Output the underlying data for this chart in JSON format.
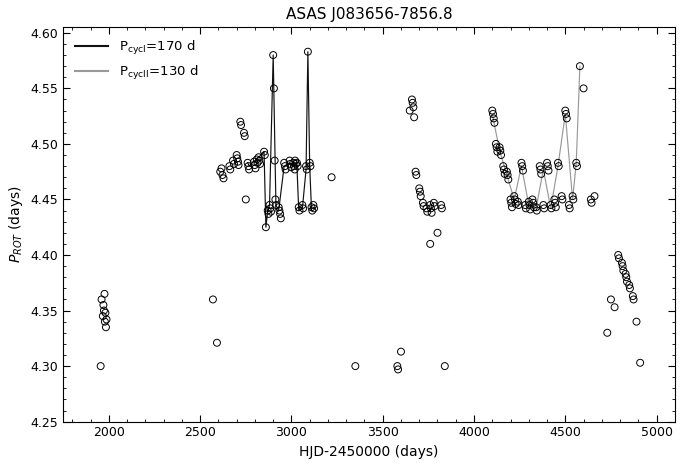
{
  "title": "ASAS J083656-7856.8",
  "xlabel": "HJD-2450000 (days)",
  "ylabel": "$P_{ROT}$ (days)",
  "xlim": [
    1750,
    5100
  ],
  "ylim": [
    4.25,
    4.605
  ],
  "xticks": [
    2000,
    2500,
    3000,
    3500,
    4000,
    4500,
    5000
  ],
  "yticks": [
    4.25,
    4.3,
    4.35,
    4.4,
    4.45,
    4.5,
    4.55,
    4.6
  ],
  "scatter_x": [
    1960,
    1967,
    1970,
    1973,
    1976,
    1978,
    1981,
    1984,
    1987,
    1955,
    2610,
    2617,
    2622,
    2628,
    2660,
    2665,
    2680,
    2685,
    2700,
    2703,
    2707,
    2710,
    2720,
    2724,
    2740,
    2744,
    2760,
    2764,
    2768,
    2795,
    2799,
    2803,
    2810,
    2814,
    2750,
    2820,
    2824,
    2828,
    2850,
    2854,
    2860,
    2870,
    2874,
    2880,
    2884,
    2888,
    2900,
    2904,
    2908,
    2912,
    2916,
    2930,
    2934,
    2938,
    2942,
    2960,
    2964,
    2968,
    2990,
    2994,
    2998,
    3010,
    3014,
    3018,
    3020,
    3024,
    3030,
    3034,
    3040,
    3044,
    3060,
    3064,
    3080,
    3084,
    3090,
    3100,
    3104,
    3110,
    3114,
    3120,
    3124,
    2570,
    2592,
    3220,
    3350,
    3660,
    3664,
    3668,
    3680,
    3684,
    3700,
    3704,
    3708,
    3720,
    3724,
    3740,
    3744,
    3760,
    3764,
    3768,
    3780,
    3784,
    3800,
    3820,
    3824,
    3840,
    3648,
    3672,
    3760,
    3580,
    3584,
    3600,
    4100,
    4104,
    4108,
    4112,
    4120,
    4124,
    4128,
    4140,
    4144,
    4148,
    4160,
    4164,
    4168,
    4180,
    4184,
    4188,
    4200,
    4204,
    4208,
    4220,
    4224,
    4228,
    4240,
    4244,
    4260,
    4264,
    4268,
    4280,
    4284,
    4300,
    4304,
    4308,
    4320,
    4324,
    4328,
    4340,
    4344,
    4360,
    4364,
    4368,
    4380,
    4384,
    4400,
    4404,
    4408,
    4420,
    4424,
    4440,
    4444,
    4448,
    4460,
    4464,
    4480,
    4484,
    4500,
    4504,
    4508,
    4520,
    4524,
    4540,
    4544,
    4560,
    4564,
    4580,
    4600,
    4640,
    4644,
    4660,
    4790,
    4794,
    4810,
    4814,
    4818,
    4830,
    4834,
    4838,
    4850,
    4854,
    4870,
    4874,
    4890,
    4750,
    4770,
    4730,
    4910
  ],
  "scatter_y": [
    4.36,
    4.345,
    4.355,
    4.35,
    4.365,
    4.34,
    4.348,
    4.335,
    4.342,
    4.3,
    4.475,
    4.478,
    4.472,
    4.469,
    4.48,
    4.477,
    4.485,
    4.482,
    4.49,
    4.487,
    4.484,
    4.481,
    4.52,
    4.517,
    4.51,
    4.507,
    4.483,
    4.48,
    4.477,
    4.484,
    4.481,
    4.478,
    4.486,
    4.483,
    4.45,
    4.488,
    4.485,
    4.482,
    4.493,
    4.49,
    4.425,
    4.44,
    4.437,
    4.445,
    4.442,
    4.439,
    4.58,
    4.55,
    4.485,
    4.45,
    4.445,
    4.443,
    4.44,
    4.437,
    4.433,
    4.483,
    4.48,
    4.477,
    4.485,
    4.482,
    4.479,
    4.483,
    4.48,
    4.477,
    4.485,
    4.482,
    4.483,
    4.48,
    4.443,
    4.44,
    4.445,
    4.442,
    4.48,
    4.477,
    4.583,
    4.483,
    4.48,
    4.443,
    4.44,
    4.445,
    4.442,
    4.36,
    4.321,
    4.47,
    4.3,
    4.54,
    4.537,
    4.533,
    4.475,
    4.472,
    4.46,
    4.457,
    4.453,
    4.447,
    4.444,
    4.442,
    4.439,
    4.445,
    4.442,
    4.438,
    4.447,
    4.444,
    4.42,
    4.445,
    4.442,
    4.3,
    4.53,
    4.524,
    4.41,
    4.3,
    4.297,
    4.313,
    4.53,
    4.527,
    4.523,
    4.519,
    4.5,
    4.497,
    4.493,
    4.497,
    4.494,
    4.49,
    4.48,
    4.477,
    4.473,
    4.475,
    4.472,
    4.468,
    4.45,
    4.447,
    4.443,
    4.453,
    4.45,
    4.446,
    4.448,
    4.445,
    4.483,
    4.48,
    4.476,
    4.445,
    4.442,
    4.448,
    4.445,
    4.441,
    4.45,
    4.447,
    4.443,
    4.443,
    4.44,
    4.48,
    4.477,
    4.473,
    4.445,
    4.442,
    4.483,
    4.48,
    4.476,
    4.445,
    4.442,
    4.45,
    4.447,
    4.443,
    4.483,
    4.48,
    4.453,
    4.45,
    4.53,
    4.527,
    4.523,
    4.445,
    4.442,
    4.453,
    4.45,
    4.483,
    4.48,
    4.57,
    4.55,
    4.45,
    4.447,
    4.453,
    4.4,
    4.397,
    4.393,
    4.39,
    4.386,
    4.383,
    4.38,
    4.376,
    4.373,
    4.37,
    4.363,
    4.36,
    4.34,
    4.36,
    4.353,
    4.33,
    4.303
  ],
  "cycle1_line_x": [
    2760,
    2770,
    2790,
    2800,
    2810,
    2820,
    2840,
    2850,
    2860,
    2870,
    2880,
    2900,
    2915,
    2930,
    2960,
    2990,
    3010,
    3020,
    3030,
    3040,
    3060,
    3080,
    3090,
    3100,
    3110
  ],
  "cycle1_line_y": [
    4.483,
    4.48,
    4.484,
    4.484,
    4.486,
    4.488,
    4.491,
    4.493,
    4.425,
    4.44,
    4.445,
    4.58,
    4.445,
    4.44,
    4.48,
    4.483,
    4.48,
    4.483,
    4.48,
    4.44,
    4.442,
    4.477,
    4.583,
    4.48,
    4.44
  ],
  "cycle2_line_x": [
    4100,
    4140,
    4180,
    4220,
    4260,
    4300,
    4340,
    4380,
    4420,
    4460,
    4500,
    4540,
    4560,
    4580
  ],
  "cycle2_line_y": [
    4.527,
    4.494,
    4.472,
    4.45,
    4.48,
    4.445,
    4.442,
    4.477,
    4.442,
    4.48,
    4.527,
    4.45,
    4.483,
    4.57
  ],
  "line1_color": "#111111",
  "line2_color": "#999999",
  "marker_size": 5,
  "marker_edge_width": 0.7,
  "title_fontsize": 11,
  "label_fontsize": 10,
  "legend_fontsize": 9.5
}
